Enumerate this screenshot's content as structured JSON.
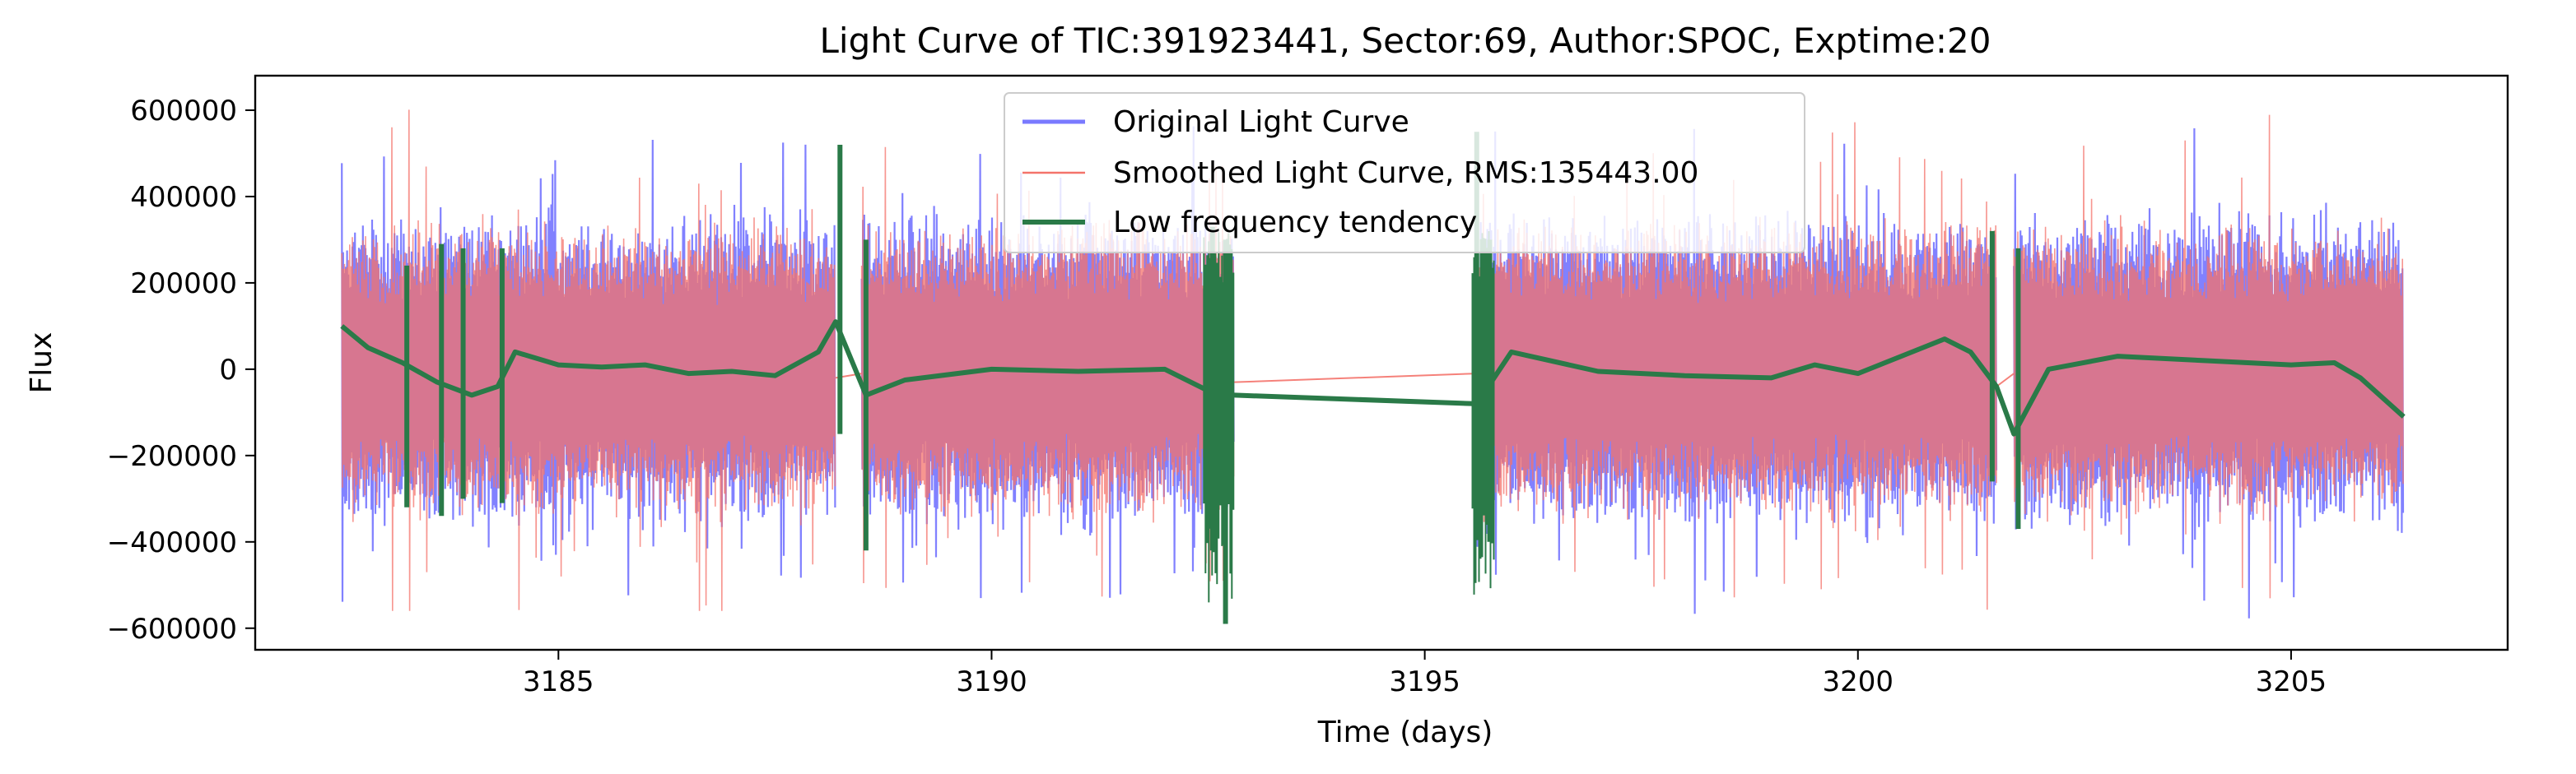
{
  "chart_data": {
    "type": "line",
    "title": "Light Curve of TIC:391923441, Sector:69, Author:SPOC, Exptime:20",
    "xlabel": "Time (days)",
    "ylabel": "Flux",
    "xlim": [
      3181.5,
      3207.5
    ],
    "ylim": [
      -650000,
      680000
    ],
    "xticks": [
      3185,
      3190,
      3195,
      3200,
      3205
    ],
    "xtick_labels": [
      "3185",
      "3190",
      "3195",
      "3200",
      "3205"
    ],
    "yticks": [
      -600000,
      -400000,
      -200000,
      0,
      200000,
      400000,
      600000
    ],
    "ytick_labels": [
      "−600000",
      "−400000",
      "−200000",
      "0",
      "200000",
      "400000",
      "600000"
    ],
    "grid": false,
    "legend_position": "top-center",
    "data_segments": [
      [
        3182.5,
        3188.2
      ],
      [
        3188.5,
        3192.8
      ],
      [
        3195.6,
        3201.6
      ],
      [
        3201.8,
        3206.3
      ]
    ],
    "series": [
      {
        "name": "Original Light Curve",
        "color": "#7a7aff",
        "style": "dense oscillation",
        "band": {
          "upper_typical": 350000,
          "lower_typical": -350000,
          "max": 600000,
          "min": -590000
        }
      },
      {
        "name": "Smoothed Light Curve, RMS:135443.00",
        "color": "#f4736b",
        "style": "dense oscillation",
        "band": {
          "upper_typical": 330000,
          "lower_typical": -330000,
          "max": 620000,
          "min": -560000
        }
      },
      {
        "name": "Low frequency tendency",
        "color": "#2a7a48",
        "x": [
          3182.5,
          3182.8,
          3183.2,
          3183.6,
          3184.0,
          3184.3,
          3184.5,
          3185.0,
          3185.5,
          3186.0,
          3186.5,
          3187.0,
          3187.5,
          3188.0,
          3188.2,
          3188.55,
          3189.0,
          3190.0,
          3191.0,
          3192.0,
          3192.5,
          3192.8,
          3195.6,
          3196.0,
          3197.0,
          3198.0,
          3199.0,
          3199.5,
          3200.0,
          3200.5,
          3201.0,
          3201.3,
          3201.6,
          3201.8,
          3202.2,
          3203.0,
          3204.0,
          3205.0,
          3205.5,
          3205.8,
          3206.3
        ],
        "y": [
          100000,
          50000,
          15000,
          -30000,
          -60000,
          -40000,
          40000,
          10000,
          5000,
          10000,
          -10000,
          -5000,
          -15000,
          40000,
          110000,
          -60000,
          -25000,
          0,
          -5000,
          0,
          -50000,
          -60000,
          -80000,
          40000,
          -5000,
          -15000,
          -20000,
          10000,
          -10000,
          30000,
          70000,
          40000,
          -40000,
          -150000,
          0,
          30000,
          20000,
          10000,
          15000,
          -20000,
          -110000
        ]
      }
    ]
  }
}
